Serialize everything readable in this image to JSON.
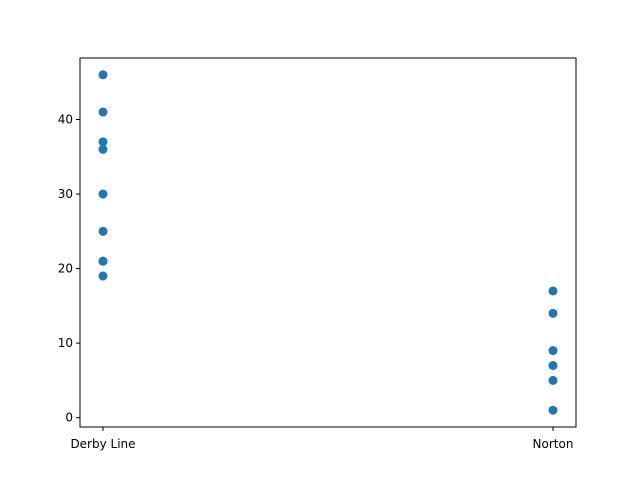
{
  "chart_data": {
    "type": "scatter",
    "categories": [
      "Derby Line",
      "Norton"
    ],
    "series": [
      {
        "color": "#1f77b4",
        "points": [
          {
            "x": "Derby Line",
            "y": 46
          },
          {
            "x": "Derby Line",
            "y": 41
          },
          {
            "x": "Derby Line",
            "y": 37
          },
          {
            "x": "Derby Line",
            "y": 36
          },
          {
            "x": "Derby Line",
            "y": 30
          },
          {
            "x": "Derby Line",
            "y": 25
          },
          {
            "x": "Derby Line",
            "y": 21
          },
          {
            "x": "Derby Line",
            "y": 21
          },
          {
            "x": "Derby Line",
            "y": 19
          },
          {
            "x": "Norton",
            "y": 17
          },
          {
            "x": "Norton",
            "y": 14
          },
          {
            "x": "Norton",
            "y": 9
          },
          {
            "x": "Norton",
            "y": 7
          },
          {
            "x": "Norton",
            "y": 5
          },
          {
            "x": "Norton",
            "y": 1
          }
        ]
      }
    ],
    "y_ticks": [
      0,
      10,
      20,
      30,
      40
    ],
    "ylim": [
      -1.25,
      48.25
    ],
    "title": "",
    "xlabel": "",
    "ylabel": "",
    "grid": false,
    "legend": "none"
  }
}
